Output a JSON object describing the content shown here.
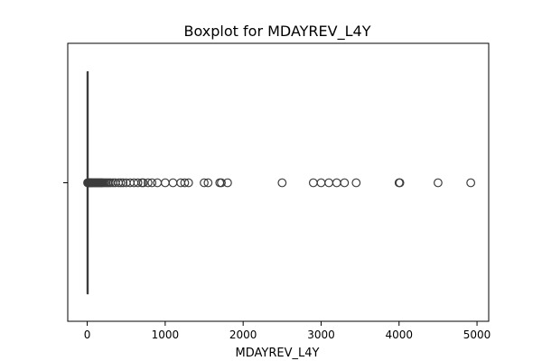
{
  "chart_data": {
    "type": "boxplot",
    "orientation": "horizontal",
    "title": "Boxplot for MDAYREV_L4Y",
    "xlabel": "MDAYREV_L4Y",
    "ylabel": "",
    "xlim": [
      -250,
      5150
    ],
    "xticks": [
      {
        "value": 0,
        "label": "0"
      },
      {
        "value": 1000,
        "label": "1000"
      },
      {
        "value": 2000,
        "label": "2000"
      },
      {
        "value": 3000,
        "label": "3000"
      },
      {
        "value": 4000,
        "label": "4000"
      },
      {
        "value": 5000,
        "label": "5000"
      }
    ],
    "box": {
      "whisker_low": 0,
      "q1": 0,
      "median": 0,
      "q3": 0,
      "whisker_high": 0
    },
    "outliers": [
      5,
      10,
      15,
      20,
      25,
      30,
      35,
      40,
      45,
      50,
      55,
      60,
      70,
      80,
      90,
      100,
      110,
      120,
      130,
      140,
      150,
      160,
      170,
      180,
      190,
      200,
      220,
      240,
      260,
      280,
      300,
      330,
      360,
      400,
      430,
      460,
      500,
      550,
      600,
      650,
      700,
      720,
      780,
      830,
      900,
      1000,
      1100,
      1200,
      1250,
      1300,
      1500,
      1550,
      1700,
      1720,
      1800,
      2500,
      2900,
      3000,
      3100,
      3200,
      3300,
      3450,
      4000,
      4010,
      4500,
      4920
    ],
    "colors": {
      "box_line": "#3d3d3d",
      "outlier_edge": "#3d3d3d",
      "axis": "#000000"
    },
    "grid": false,
    "legend": "none"
  }
}
